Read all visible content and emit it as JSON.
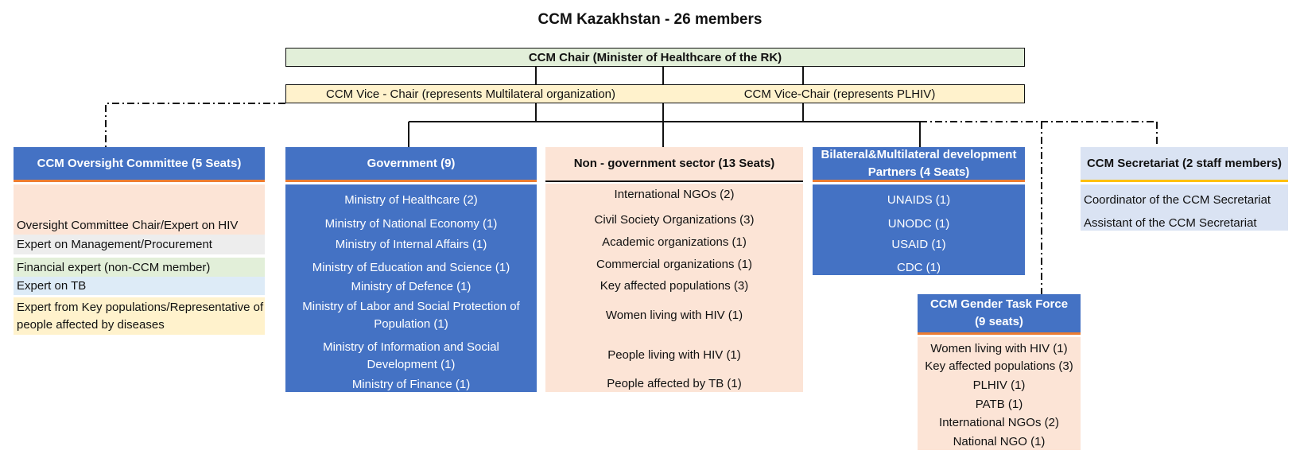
{
  "title": "CCM Kazakhstan - 26 members",
  "chair": "CCM Chair (Minister of Healthcare of the RK)",
  "vice_chairs": [
    "CCM Vice - Chair (represents Multilateral organization)",
    "CCM Vice-Chair (represents PLHIV)"
  ],
  "oversight": {
    "title": "CCM Oversight Committee (5 Seats)",
    "items": [
      "Oversight Committee Chair/Expert on HIV",
      "Expert on Management/Procurement",
      "Financial expert (non-CCM member)",
      "Expert on TB",
      "Expert from Key populations/Representative of people affected by diseases"
    ],
    "colors": [
      "#fce4d6",
      "#ededed",
      "#e2efd9",
      "#ddebf7",
      "#fff2cc"
    ]
  },
  "government": {
    "title": "Government (9)",
    "items": [
      "Ministry of Healthcare (2)",
      "Ministry of National Economy (1)",
      "Ministry of Internal Affairs (1)",
      "Ministry of Education and Science (1)",
      "Ministry of Defence (1)",
      "Ministry of Labor and Social Protection of Population (1)",
      "Ministry of Information and Social Development (1)",
      "Ministry of Finance (1)"
    ]
  },
  "ngo": {
    "title": "Non - government  sector (13 Seats)",
    "items": [
      "International NGOs (2)",
      "Civil Society Organizations (3)",
      "Academic organizations (1)",
      "Commercial organizations (1)",
      "Key affected populations (3)",
      "Women living with HIV (1)",
      "People living with HIV (1)",
      "People affected by TB (1)"
    ]
  },
  "partners": {
    "title": "Bilateral&Multilateral development Partners (4 Seats)",
    "items": [
      "UNAIDS (1)",
      "UNODC (1)",
      "USAID (1)",
      "CDC (1)"
    ]
  },
  "secretariat": {
    "title": "CCM Secretariat (2 staff members)",
    "items": [
      "Coordinator of the CCM Secretariat",
      "Assistant of the CCM Secretariat"
    ]
  },
  "gender": {
    "title": "CCM Gender Task Force (9 seats)",
    "items": [
      "Women living with HIV (1)",
      "Key affected populations (3)",
      "PLHIV (1)",
      "PATB (1)",
      "International NGOs (2)",
      "National NGO (1)"
    ]
  },
  "colors": {
    "blue": "#4472c4",
    "peach": "#fce4d6",
    "lavender": "#dae3f3",
    "orange_rule": "#ed7d31",
    "gold_rule": "#ffc000"
  }
}
